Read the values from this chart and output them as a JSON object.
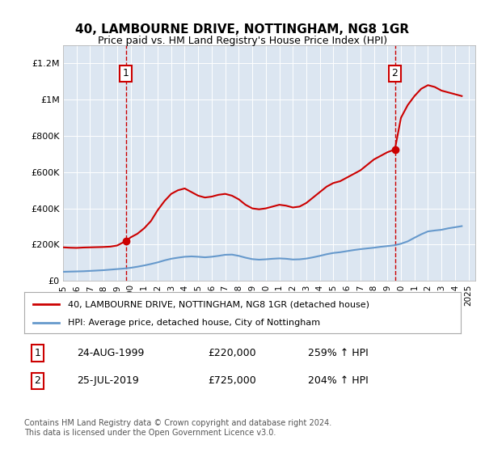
{
  "title": "40, LAMBOURNE DRIVE, NOTTINGHAM, NG8 1GR",
  "subtitle": "Price paid vs. HM Land Registry's House Price Index (HPI)",
  "legend_line1": "40, LAMBOURNE DRIVE, NOTTINGHAM, NG8 1GR (detached house)",
  "legend_line2": "HPI: Average price, detached house, City of Nottingham",
  "footnote": "Contains HM Land Registry data © Crown copyright and database right 2024.\nThis data is licensed under the Open Government Licence v3.0.",
  "sale1_label": "1",
  "sale1_date": "24-AUG-1999",
  "sale1_price": "£220,000",
  "sale1_hpi": "259% ↑ HPI",
  "sale2_label": "2",
  "sale2_date": "25-JUL-2019",
  "sale2_price": "£725,000",
  "sale2_hpi": "204% ↑ HPI",
  "red_color": "#cc0000",
  "blue_color": "#6699cc",
  "bg_color": "#dce6f1",
  "plot_bg": "#dce6f1",
  "ylim": [
    0,
    1300000
  ],
  "xlim_start": 1995.0,
  "xlim_end": 2025.5,
  "sale1_x": 1999.65,
  "sale1_y": 220000,
  "sale2_x": 2019.55,
  "sale2_y": 725000,
  "red_x": [
    1995.0,
    1995.5,
    1996.0,
    1996.5,
    1997.0,
    1997.5,
    1998.0,
    1998.5,
    1999.0,
    1999.65,
    2000.0,
    2000.5,
    2001.0,
    2001.5,
    2002.0,
    2002.5,
    2003.0,
    2003.5,
    2004.0,
    2004.5,
    2005.0,
    2005.5,
    2006.0,
    2006.5,
    2007.0,
    2007.5,
    2008.0,
    2008.5,
    2009.0,
    2009.5,
    2010.0,
    2010.5,
    2011.0,
    2011.5,
    2012.0,
    2012.5,
    2013.0,
    2013.5,
    2014.0,
    2014.5,
    2015.0,
    2015.5,
    2016.0,
    2016.5,
    2017.0,
    2017.5,
    2018.0,
    2018.5,
    2019.0,
    2019.55,
    2020.0,
    2020.5,
    2021.0,
    2021.5,
    2022.0,
    2022.5,
    2023.0,
    2023.5,
    2024.0,
    2024.5
  ],
  "red_y": [
    185000,
    183000,
    182000,
    184000,
    185000,
    186000,
    187000,
    189000,
    195000,
    220000,
    240000,
    260000,
    290000,
    330000,
    390000,
    440000,
    480000,
    500000,
    510000,
    490000,
    470000,
    460000,
    465000,
    475000,
    480000,
    470000,
    450000,
    420000,
    400000,
    395000,
    400000,
    410000,
    420000,
    415000,
    405000,
    410000,
    430000,
    460000,
    490000,
    520000,
    540000,
    550000,
    570000,
    590000,
    610000,
    640000,
    670000,
    690000,
    710000,
    725000,
    900000,
    970000,
    1020000,
    1060000,
    1080000,
    1070000,
    1050000,
    1040000,
    1030000,
    1020000
  ],
  "blue_x": [
    1995.0,
    1995.5,
    1996.0,
    1996.5,
    1997.0,
    1997.5,
    1998.0,
    1998.5,
    1999.0,
    1999.5,
    2000.0,
    2000.5,
    2001.0,
    2001.5,
    2002.0,
    2002.5,
    2003.0,
    2003.5,
    2004.0,
    2004.5,
    2005.0,
    2005.5,
    2006.0,
    2006.5,
    2007.0,
    2007.5,
    2008.0,
    2008.5,
    2009.0,
    2009.5,
    2010.0,
    2010.5,
    2011.0,
    2011.5,
    2012.0,
    2012.5,
    2013.0,
    2013.5,
    2014.0,
    2014.5,
    2015.0,
    2015.5,
    2016.0,
    2016.5,
    2017.0,
    2017.5,
    2018.0,
    2018.5,
    2019.0,
    2019.5,
    2020.0,
    2020.5,
    2021.0,
    2021.5,
    2022.0,
    2022.5,
    2023.0,
    2023.5,
    2024.0,
    2024.5
  ],
  "blue_y": [
    50000,
    51000,
    52000,
    53000,
    55000,
    57000,
    59000,
    62000,
    65000,
    68000,
    72000,
    78000,
    85000,
    93000,
    102000,
    113000,
    122000,
    128000,
    133000,
    135000,
    133000,
    130000,
    133000,
    138000,
    144000,
    145000,
    138000,
    128000,
    120000,
    117000,
    119000,
    122000,
    124000,
    122000,
    118000,
    119000,
    123000,
    130000,
    138000,
    147000,
    154000,
    158000,
    164000,
    170000,
    175000,
    179000,
    183000,
    188000,
    192000,
    196000,
    205000,
    218000,
    238000,
    257000,
    273000,
    278000,
    282000,
    290000,
    296000,
    302000
  ],
  "yticks": [
    0,
    200000,
    400000,
    600000,
    800000,
    1000000,
    1200000
  ],
  "ytick_labels": [
    "£0",
    "£200K",
    "£400K",
    "£600K",
    "£800K",
    "£1M",
    "£1.2M"
  ],
  "xticks": [
    1995,
    1996,
    1997,
    1998,
    1999,
    2000,
    2001,
    2002,
    2003,
    2004,
    2005,
    2006,
    2007,
    2008,
    2009,
    2010,
    2011,
    2012,
    2013,
    2014,
    2015,
    2016,
    2017,
    2018,
    2019,
    2020,
    2021,
    2022,
    2023,
    2024,
    2025
  ]
}
